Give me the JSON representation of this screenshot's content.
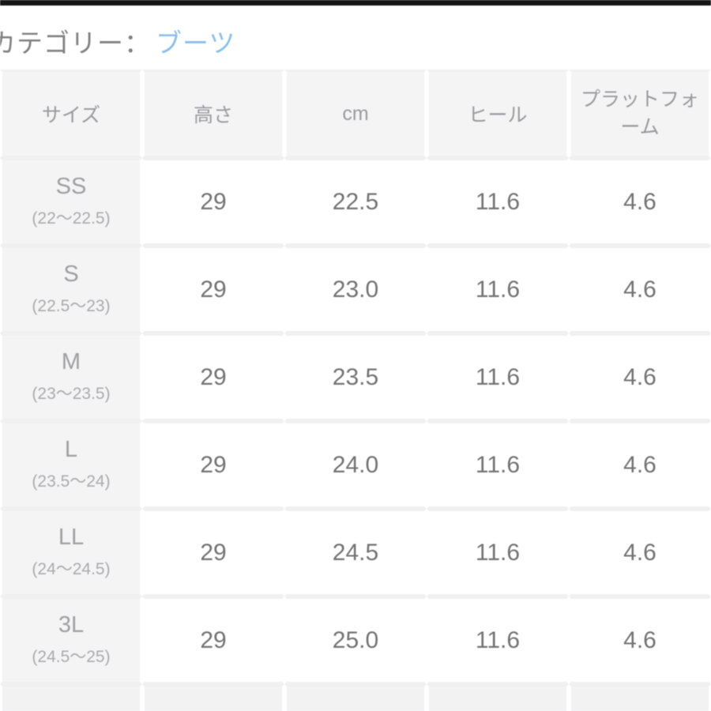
{
  "header": {
    "category_label": "カテゴリー：",
    "category_link": "ブーツ"
  },
  "table": {
    "columns": [
      "サイズ",
      "高さ",
      "cm",
      "ヒール",
      "プラットフォーム"
    ],
    "rows": [
      {
        "size": "SS",
        "range": "(22〜22.5)",
        "values": [
          "29",
          "22.5",
          "11.6",
          "4.6"
        ]
      },
      {
        "size": "S",
        "range": "(22.5〜23)",
        "values": [
          "29",
          "23.0",
          "11.6",
          "4.6"
        ]
      },
      {
        "size": "M",
        "range": "(23〜23.5)",
        "values": [
          "29",
          "23.5",
          "11.6",
          "4.6"
        ]
      },
      {
        "size": "L",
        "range": "(23.5〜24)",
        "values": [
          "29",
          "24.0",
          "11.6",
          "4.6"
        ]
      },
      {
        "size": "LL",
        "range": "(24〜24.5)",
        "values": [
          "29",
          "24.5",
          "11.6",
          "4.6"
        ]
      },
      {
        "size": "3L",
        "range": "(24.5〜25)",
        "values": [
          "29",
          "25.0",
          "11.6",
          "4.6"
        ]
      }
    ]
  },
  "colors": {
    "link_blue": "#8cc0e8",
    "header_cell_bg": "#f4f4f5",
    "data_cell_bg": "#ffffff",
    "row_separator": "#f0f0f0",
    "top_bar": "#161616"
  }
}
